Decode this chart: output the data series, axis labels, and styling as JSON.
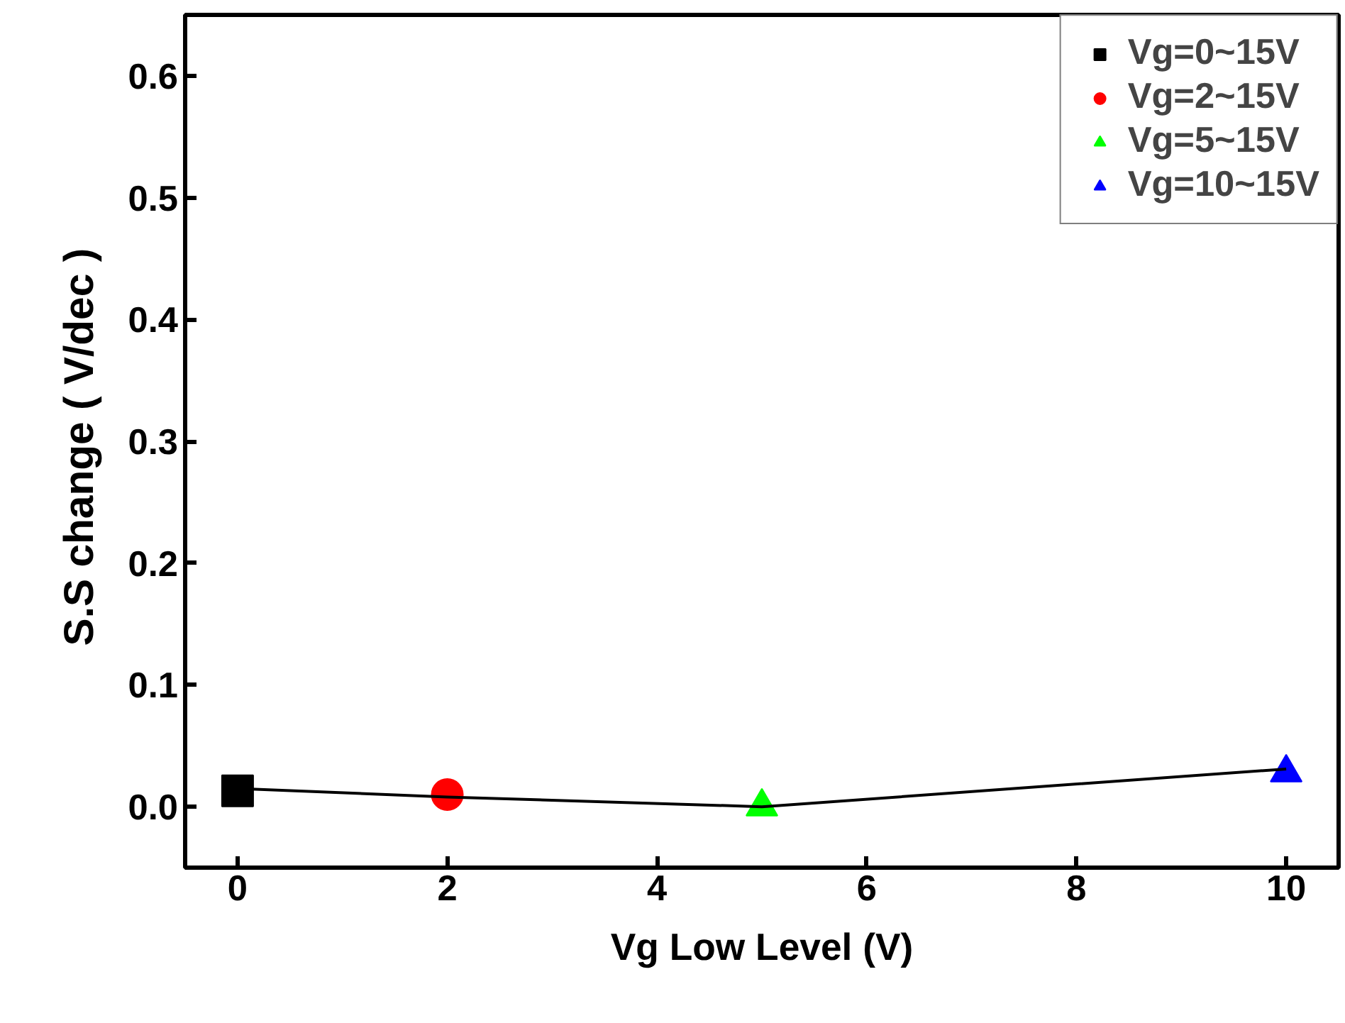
{
  "chart_data": {
    "type": "scatter",
    "xlabel": "Vg Low Level (V)",
    "ylabel": "S.S  change ( V/dec )",
    "xlim": [
      -0.5,
      10.5
    ],
    "ylim": [
      -0.05,
      0.65
    ],
    "xticks": [
      0,
      2,
      4,
      6,
      8,
      10
    ],
    "yticks": [
      {
        "value": 0,
        "label": "0.0"
      },
      0.1,
      0.2,
      0.3,
      0.4,
      0.5,
      0.6
    ],
    "grid": false,
    "legend": "top right",
    "series": [
      {
        "type": "line",
        "color": "#000000",
        "x": [
          0,
          2,
          5,
          10
        ],
        "values": [
          0.015,
          0.008,
          0.0,
          0.031
        ],
        "marker": "none",
        "line_style": "solid"
      },
      {
        "name": "Vg=0~15V",
        "color": "#000000",
        "x": [
          0
        ],
        "values": [
          0.013
        ],
        "marker": "square"
      },
      {
        "name": "Vg=2~15V",
        "color": "#ff0000",
        "x": [
          2
        ],
        "values": [
          0.01
        ],
        "marker": "circle"
      },
      {
        "name": "Vg=5~15V",
        "color": "#00ff00",
        "x": [
          5
        ],
        "values": [
          0.0
        ],
        "marker": "triangle"
      },
      {
        "name": "Vg=10~15V",
        "color": "#0000ff",
        "x": [
          10
        ],
        "values": [
          0.028
        ],
        "marker": "triangle"
      }
    ]
  }
}
